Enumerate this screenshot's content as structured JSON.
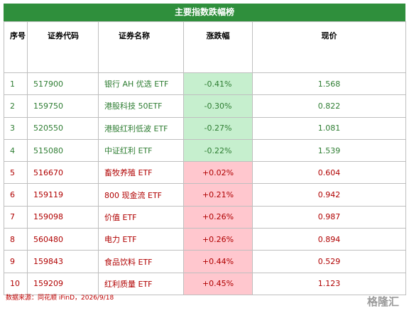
{
  "header": {
    "title": "主要指数跌幅榜"
  },
  "table": {
    "columns": [
      "序号",
      "证券代码",
      "证券名称",
      "涨跌幅",
      "现价"
    ],
    "rows": [
      [
        "1",
        "517900",
        "银行 AH 优选 ETF",
        "-0.41%",
        "1.568"
      ],
      [
        "2",
        "159750",
        "港股科技 50ETF",
        "-0.30%",
        "0.822"
      ],
      [
        "3",
        "520550",
        "港股红利低波 ETF",
        "-0.27%",
        "1.081"
      ],
      [
        "4",
        "515080",
        "中证红利 ETF",
        "-0.22%",
        "1.539"
      ],
      [
        "5",
        "516670",
        "畜牧养殖 ETF",
        "+0.02%",
        "0.604"
      ],
      [
        "6",
        "159119",
        "800 现金流 ETF",
        "+0.21%",
        "0.942"
      ],
      [
        "7",
        "159098",
        "价值 ETF",
        "+0.26%",
        "0.987"
      ],
      [
        "8",
        "560480",
        "电力 ETF",
        "+0.26%",
        "0.894"
      ],
      [
        "9",
        "159843",
        "食品饮料 ETF",
        "+0.44%",
        "0.529"
      ],
      [
        "10",
        "159209",
        "红利质量 ETF",
        "+0.45%",
        "1.123"
      ]
    ]
  },
  "footer": {
    "source": "数据来源：同花顺 iFinD，2026/9/18",
    "watermark": "格隆汇"
  }
}
